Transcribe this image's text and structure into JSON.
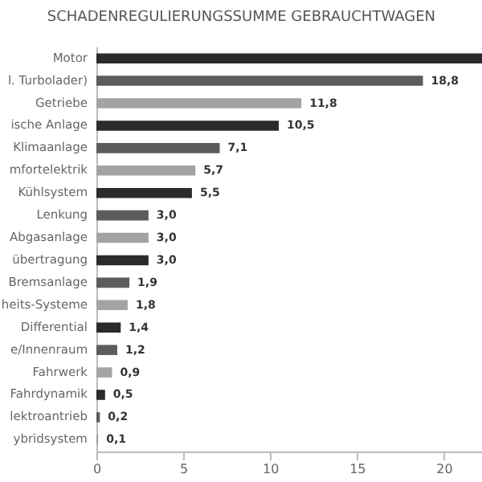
{
  "chart_data": {
    "type": "bar",
    "orientation": "horizontal",
    "title": "SCHADENREGULIERUNGSSUMME GEBRAUCHTWAGEN",
    "categories": [
      "Motor",
      "l. Turbolader)",
      "Getriebe",
      "ische Anlage",
      "Klimaanlage",
      "mfortelektrik",
      "Kühlsystem",
      "Lenkung",
      "Abgasanlage",
      "übertragung",
      "Bremsanlage",
      "heits-Systeme",
      "Differential",
      "e/Innenraum",
      "Fahrwerk",
      "Fahrdynamik",
      "lektroantrieb",
      "ybridsystem"
    ],
    "values": [
      22.2,
      18.8,
      11.8,
      10.5,
      7.1,
      5.7,
      5.5,
      3.0,
      3.0,
      3.0,
      1.9,
      1.8,
      1.4,
      1.2,
      0.9,
      0.5,
      0.2,
      0.1
    ],
    "value_labels": [
      null,
      "18,8",
      "11,8",
      "10,5",
      "7,1",
      "5,7",
      "5,5",
      "3,0",
      "3,0",
      "3,0",
      "1,9",
      "1,8",
      "1,4",
      "1,2",
      "0,9",
      "0,5",
      "0,2",
      "0,1"
    ],
    "colors": [
      "#2b2b2b",
      "#5c5c5c",
      "#a3a3a3",
      "#2b2b2b",
      "#5c5c5c",
      "#a3a3a3",
      "#2b2b2b",
      "#5c5c5c",
      "#a3a3a3",
      "#2b2b2b",
      "#5c5c5c",
      "#a3a3a3",
      "#2b2b2b",
      "#5c5c5c",
      "#a3a3a3",
      "#2b2b2b",
      "#5c5c5c",
      "#a3a3a3"
    ],
    "xlim": [
      0,
      22.2
    ],
    "xticks": [
      0,
      5,
      10,
      15,
      20
    ],
    "grid": false
  }
}
